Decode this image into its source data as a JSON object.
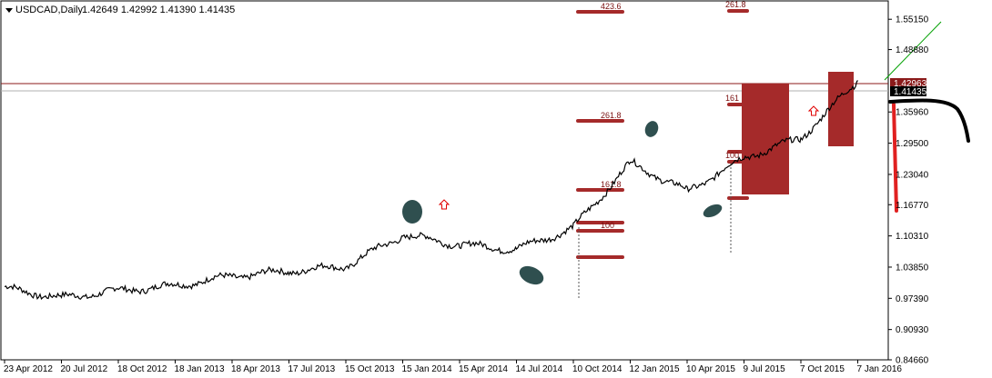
{
  "header": {
    "symbol_label": "USDCAD,Daily",
    "ohlc": "1.42649 1.42992 1.41390 1.41435"
  },
  "colors": {
    "price_line": "#000000",
    "level_line": "#8b1a1a",
    "fib_bar": "#a52a2a",
    "box_fill": "#a52a2a",
    "ellipse_fill": "#2f4f4f",
    "arrow": "#e00000",
    "trend_line": "#00a000",
    "bid_tag_bg": "#8b1a1a",
    "last_tag_bg": "#000000"
  },
  "chart_data": {
    "type": "line",
    "title": "USDCAD,Daily",
    "series": [
      {
        "name": "USDCAD",
        "x": [
          "23 Apr 2012",
          "20 Jul 2012",
          "18 Oct 2012",
          "18 Jan 2013",
          "18 Apr 2013",
          "17 Jul 2013",
          "15 Oct 2013",
          "15 Jan 2014",
          "15 Apr 2014",
          "14 Jul 2014",
          "10 Oct 2014",
          "12 Jan 2015",
          "10 Apr 2015",
          "9 Jul 2015",
          "7 Oct 2015",
          "7 Jan 2016"
        ],
        "values": [
          0.995,
          0.975,
          0.99,
          1.0,
          1.02,
          1.03,
          1.04,
          1.105,
          1.085,
          1.075,
          1.12,
          1.255,
          1.195,
          1.265,
          1.305,
          1.425
        ]
      }
    ],
    "x_tick_labels": [
      "23 Apr 2012",
      "20 Jul 2012",
      "18 Oct 2012",
      "18 Jan 2013",
      "18 Apr 2013",
      "17 Jul 2013",
      "15 Oct 2013",
      "15 Jan 2014",
      "15 Apr 2014",
      "14 Jul 2014",
      "10 Oct 2014",
      "12 Jan 2015",
      "10 Apr 2015",
      "9 Jul 2015",
      "7 Oct 2015",
      "7 Jan 2016"
    ],
    "y_tick_labels": [
      "1.55150",
      "1.48880",
      "1.35960",
      "1.29500",
      "1.23040",
      "1.16770",
      "1.10310",
      "1.03850",
      "0.97390",
      "0.90930",
      "0.84660"
    ],
    "ylim": [
      0.8466,
      1.5895
    ],
    "price_tags": {
      "bid": "1.42963",
      "last": "1.41435"
    },
    "fib_labels": [
      "423.6",
      "261.8",
      "261.8",
      "161.8",
      "161",
      "100",
      "100"
    ],
    "grid": false
  }
}
